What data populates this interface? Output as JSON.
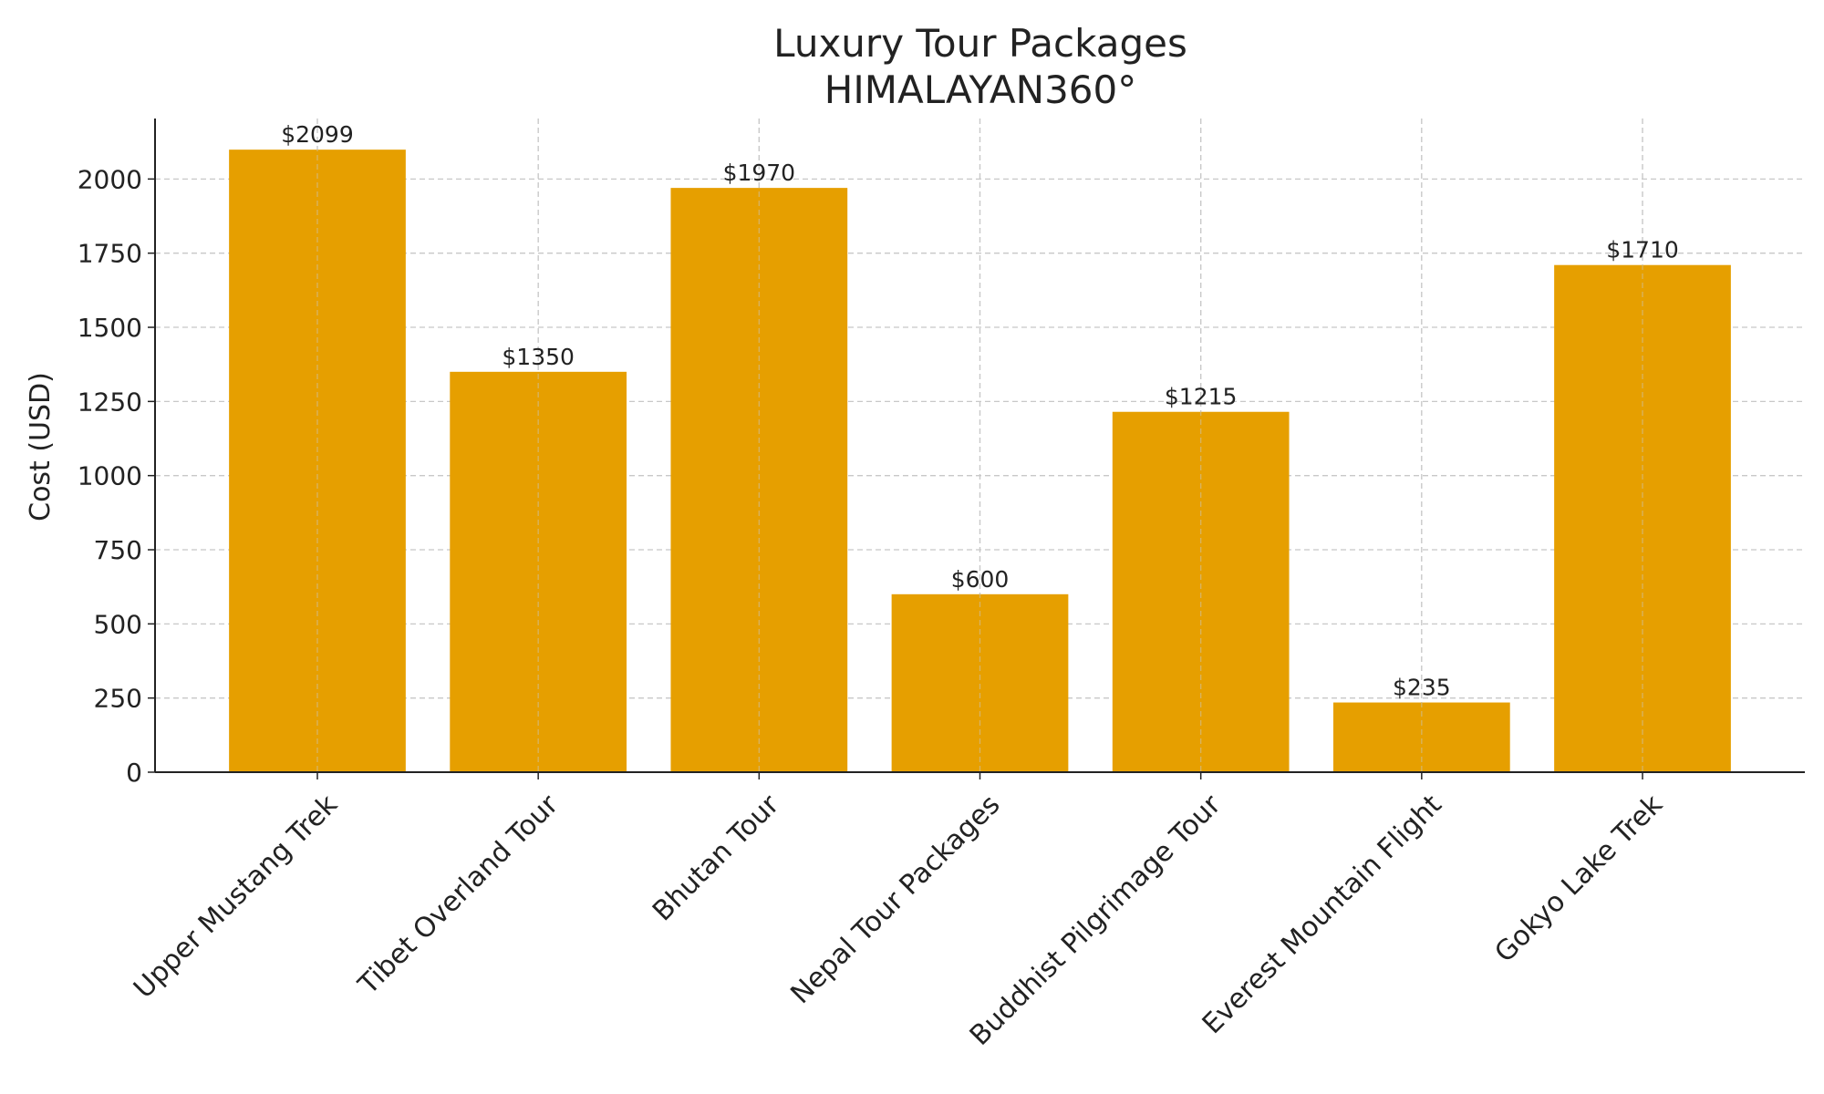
{
  "chart_data": {
    "type": "bar",
    "title": "Luxury Tour Packages",
    "subtitle": "HIMALAYAN360°",
    "y_label": "Cost (USD)",
    "categories": [
      "Upper Mustang Trek",
      "Tibet Overland Tour",
      "Bhutan Tour",
      "Nepal Tour Packages",
      "Buddhist Pilgrimage Tour",
      "Everest Mountain Flight",
      "Gokyo Lake Trek"
    ],
    "values": [
      2099,
      1350,
      1970,
      600,
      1215,
      235,
      1710
    ],
    "value_labels": [
      "$2099",
      "$1350",
      "$1970",
      "$600",
      "$1215",
      "$235",
      "$1710"
    ],
    "color": "#e69f00",
    "ylim": [
      0,
      2204
    ],
    "yticks": [
      0,
      250,
      500,
      750,
      1000,
      1250,
      1500,
      1750,
      2000
    ],
    "grid": true
  }
}
